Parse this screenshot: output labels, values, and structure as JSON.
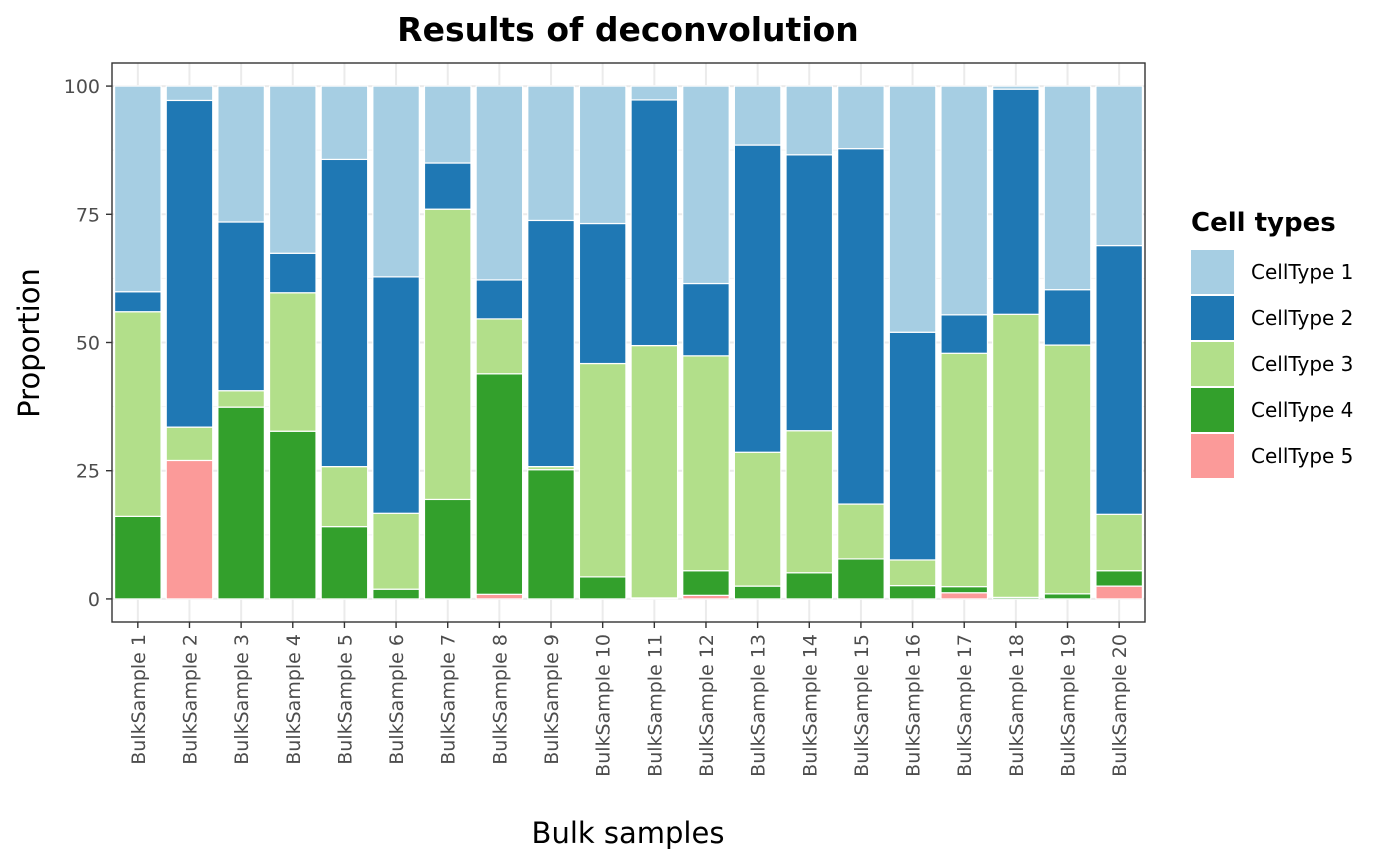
{
  "chart_data": {
    "type": "bar",
    "stacked": true,
    "title": "Results of deconvolution",
    "xlabel": "Bulk samples",
    "ylabel": "Proportion",
    "ylim": [
      -4.5,
      104.5
    ],
    "yticks": [
      0,
      25,
      50,
      75,
      100
    ],
    "grid": true,
    "legend": {
      "title": "Cell types",
      "position": "right"
    },
    "categories": [
      "BulkSample 1",
      "BulkSample 2",
      "BulkSample 3",
      "BulkSample 4",
      "BulkSample 5",
      "BulkSample 6",
      "BulkSample 7",
      "BulkSample 8",
      "BulkSample 9",
      "BulkSample 10",
      "BulkSample 11",
      "BulkSample 12",
      "BulkSample 13",
      "BulkSample 14",
      "BulkSample 15",
      "BulkSample 16",
      "BulkSample 17",
      "BulkSample 18",
      "BulkSample 19",
      "BulkSample 20"
    ],
    "series": [
      {
        "name": "CellType 1",
        "color": "#a6cee3",
        "values": [
          40.1,
          2.8,
          26.5,
          32.6,
          14.3,
          37.2,
          15.0,
          37.8,
          26.2,
          26.8,
          2.7,
          38.5,
          11.5,
          13.4,
          12.2,
          48.0,
          44.6,
          0.6,
          39.7,
          31.1
        ]
      },
      {
        "name": "CellType 2",
        "color": "#1f78b4",
        "values": [
          3.9,
          63.7,
          32.9,
          7.7,
          59.9,
          46.1,
          9.0,
          7.6,
          48.0,
          27.3,
          47.9,
          14.1,
          59.9,
          53.8,
          69.3,
          44.4,
          7.5,
          43.9,
          10.8,
          52.4
        ]
      },
      {
        "name": "CellType 3",
        "color": "#b2df8a",
        "values": [
          39.9,
          6.5,
          3.2,
          27.0,
          11.7,
          14.8,
          56.6,
          10.7,
          0.6,
          41.6,
          49.2,
          41.9,
          26.1,
          27.7,
          10.7,
          5.0,
          45.5,
          55.2,
          48.5,
          11.0
        ]
      },
      {
        "name": "CellType 4",
        "color": "#33a02c",
        "values": [
          16.1,
          0,
          37.4,
          32.7,
          14.1,
          1.9,
          19.4,
          43.0,
          25.2,
          4.3,
          0.2,
          4.8,
          2.5,
          5.1,
          7.8,
          2.6,
          1.2,
          0.3,
          1.0,
          3.0
        ]
      },
      {
        "name": "CellType 5",
        "color": "#fb9a99",
        "values": [
          0,
          27.0,
          0,
          0,
          0,
          0,
          0,
          0.9,
          0,
          0,
          0,
          0.7,
          0,
          0,
          0,
          0,
          1.2,
          0,
          0,
          2.5
        ]
      }
    ]
  }
}
